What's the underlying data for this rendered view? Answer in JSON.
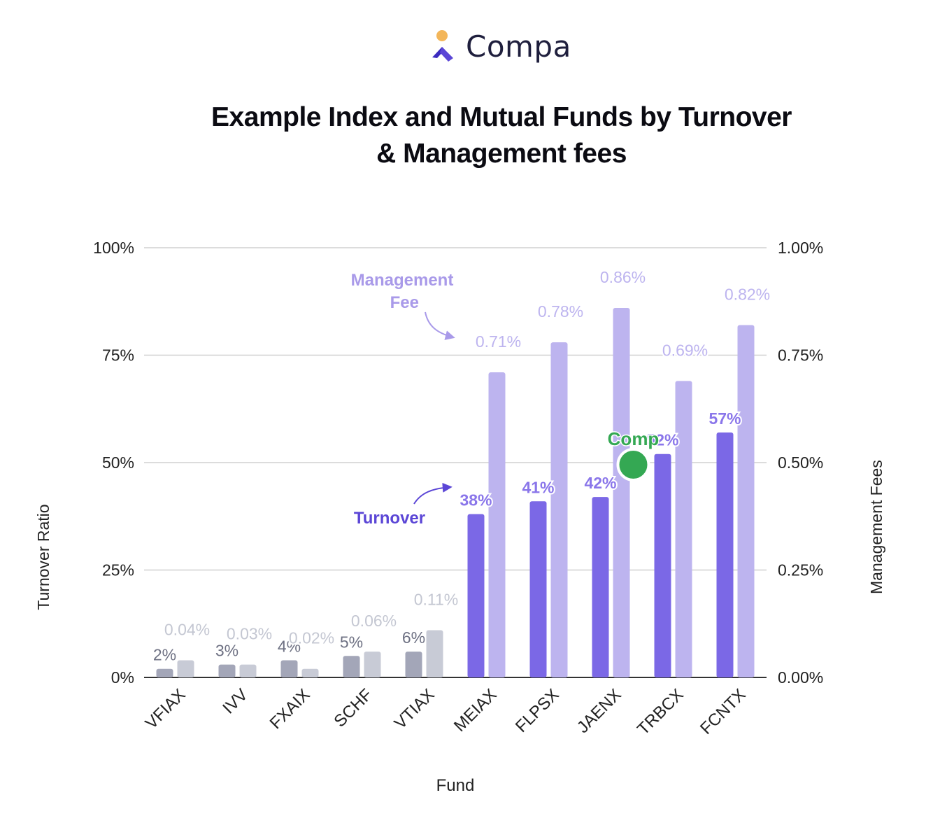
{
  "brand": {
    "name": "Compa",
    "colors": {
      "primary": "#5b46d6",
      "accent": "#f3b65a"
    }
  },
  "chart_data": {
    "type": "bar",
    "title_lines": [
      "Example Index and Mutual Funds by Turnover",
      "& Management fees"
    ],
    "xlabel": "Fund",
    "ylabel_left": "Turnover Ratio",
    "ylabel_right": "Management Fees",
    "ylim_left": [
      0,
      100
    ],
    "ylim_right": [
      0,
      1.0
    ],
    "yticks_left": [
      "0%",
      "25%",
      "50%",
      "75%",
      "100%"
    ],
    "yticks_right": [
      "0.00%",
      "0.25%",
      "0.50%",
      "0.75%",
      "1.00%"
    ],
    "grid": true,
    "categories": [
      "VFIAX",
      "IVV",
      "FXAIX",
      "SCHF",
      "VTIAX",
      "MEIAX",
      "FLPSX",
      "JAENX",
      "TRBCX",
      "FCNTX"
    ],
    "series": [
      {
        "name": "Turnover",
        "axis": "left",
        "values": [
          2,
          3,
          4,
          5,
          6,
          38,
          41,
          42,
          52,
          57
        ],
        "labels": [
          "2%",
          "3%",
          "4%",
          "5%",
          "6%",
          "38%",
          "41%",
          "42%",
          "52%",
          "57%"
        ],
        "colors": {
          "index": "#a3a6b8",
          "mutual": "#7b68e6"
        }
      },
      {
        "name": "Management Fee",
        "axis": "right",
        "values": [
          0.04,
          0.03,
          0.02,
          0.06,
          0.11,
          0.71,
          0.78,
          0.86,
          0.69,
          0.82
        ],
        "labels": [
          "0.04%",
          "0.03%",
          "0.02%",
          "0.06%",
          "0.11%",
          "0.71%",
          "0.78%",
          "0.86%",
          "0.69%",
          "0.82%"
        ],
        "colors": {
          "index": "#c8cbd6",
          "mutual": "#bdb4ef"
        }
      }
    ],
    "index_fund_count": 5,
    "annotations": [
      {
        "text_lines": [
          "Management",
          "Fee"
        ],
        "points_to": "Management Fee",
        "color": "#a99ae9"
      },
      {
        "text_lines": [
          "Turnover"
        ],
        "points_to": "Turnover",
        "color": "#5b46d6"
      }
    ],
    "marker": {
      "label": "Comp",
      "value_left": 50,
      "color": "#34a853"
    }
  }
}
